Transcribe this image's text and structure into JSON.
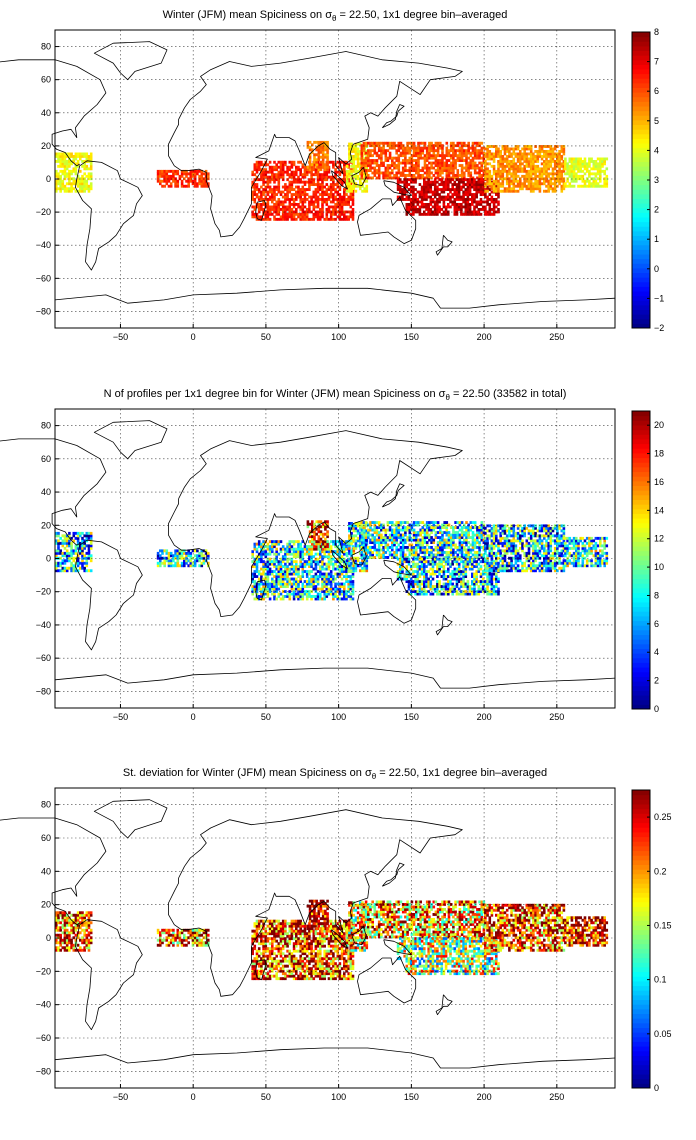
{
  "chart_data": [
    {
      "type": "heatmap",
      "title_parts": {
        "pre": "Winter (JFM) mean Spiciness on σ",
        "sub": "θ",
        "post": " = 22.50, 1x1 degree bin–averaged"
      },
      "xlim": [
        -95,
        290
      ],
      "ylim": [
        -90,
        90
      ],
      "x_ticks": [
        -50,
        0,
        50,
        100,
        150,
        200,
        250
      ],
      "y_ticks": [
        -80,
        -60,
        -40,
        -20,
        0,
        20,
        40,
        60,
        80
      ],
      "colorbar": {
        "min": -2,
        "max": 8,
        "ticks": [
          -2,
          -1,
          0,
          1,
          2,
          3,
          4,
          5,
          6,
          7,
          8
        ]
      },
      "grid": true,
      "regions": [
        {
          "x": [
            -95,
            -70
          ],
          "y": [
            -8,
            15
          ],
          "value": 4.2
        },
        {
          "x": [
            -25,
            10
          ],
          "y": [
            -5,
            5
          ],
          "value": 6.2
        },
        {
          "x": [
            40,
            110
          ],
          "y": [
            -25,
            10
          ],
          "value": 6.4
        },
        {
          "x": [
            78,
            92
          ],
          "y": [
            5,
            22
          ],
          "value": 5.5
        },
        {
          "x": [
            105,
            120
          ],
          "y": [
            -8,
            22
          ],
          "value": 4.2
        },
        {
          "x": [
            115,
            200
          ],
          "y": [
            0,
            22
          ],
          "value": 6.0
        },
        {
          "x": [
            140,
            210
          ],
          "y": [
            -22,
            0
          ],
          "value": 7.3
        },
        {
          "x": [
            200,
            255
          ],
          "y": [
            -8,
            20
          ],
          "value": 5.3
        },
        {
          "x": [
            255,
            285
          ],
          "y": [
            -5,
            12
          ],
          "value": 4.0
        }
      ]
    },
    {
      "type": "heatmap",
      "title_parts": {
        "pre": "N of profiles per 1x1 degree bin for Winter (JFM) mean Spiciness on σ",
        "sub": "θ",
        "post": " = 22.50 (33582 in total)"
      },
      "xlim": [
        -95,
        290
      ],
      "ylim": [
        -90,
        90
      ],
      "x_ticks": [
        -50,
        0,
        50,
        100,
        150,
        200,
        250
      ],
      "y_ticks": [
        -80,
        -60,
        -40,
        -20,
        0,
        20,
        40,
        60,
        80
      ],
      "colorbar": {
        "min": 0,
        "max": 21,
        "ticks": [
          0,
          2,
          4,
          6,
          8,
          10,
          12,
          14,
          16,
          18,
          20
        ]
      },
      "grid": true,
      "regions": [
        {
          "x": [
            -95,
            -70
          ],
          "y": [
            -8,
            15
          ],
          "value": 5
        },
        {
          "x": [
            -25,
            10
          ],
          "y": [
            -5,
            5
          ],
          "value": 5
        },
        {
          "x": [
            40,
            110
          ],
          "y": [
            -25,
            10
          ],
          "value": 6
        },
        {
          "x": [
            78,
            92
          ],
          "y": [
            5,
            22
          ],
          "value": 15
        },
        {
          "x": [
            105,
            120
          ],
          "y": [
            -8,
            22
          ],
          "value": 7
        },
        {
          "x": [
            115,
            200
          ],
          "y": [
            0,
            22
          ],
          "value": 6
        },
        {
          "x": [
            140,
            210
          ],
          "y": [
            -22,
            0
          ],
          "value": 5
        },
        {
          "x": [
            200,
            255
          ],
          "y": [
            -8,
            20
          ],
          "value": 5
        },
        {
          "x": [
            255,
            285
          ],
          "y": [
            -5,
            12
          ],
          "value": 6
        }
      ]
    },
    {
      "type": "heatmap",
      "title_parts": {
        "pre": "St. deviation for Winter (JFM) mean Spiciness on σ",
        "sub": "θ",
        "post": " = 22.50, 1x1 degree bin–averaged"
      },
      "xlim": [
        -95,
        290
      ],
      "ylim": [
        -90,
        90
      ],
      "x_ticks": [
        -50,
        0,
        50,
        100,
        150,
        200,
        250
      ],
      "y_ticks": [
        -80,
        -60,
        -40,
        -20,
        0,
        20,
        40,
        60,
        80
      ],
      "colorbar": {
        "min": 0,
        "max": 0.275,
        "ticks": [
          0,
          0.05,
          0.1,
          0.15,
          0.2,
          0.25
        ]
      },
      "grid": true,
      "regions": [
        {
          "x": [
            -95,
            -70
          ],
          "y": [
            -8,
            15
          ],
          "value": 0.2
        },
        {
          "x": [
            -25,
            10
          ],
          "y": [
            -5,
            5
          ],
          "value": 0.18
        },
        {
          "x": [
            40,
            110
          ],
          "y": [
            -25,
            10
          ],
          "value": 0.2
        },
        {
          "x": [
            78,
            92
          ],
          "y": [
            5,
            22
          ],
          "value": 0.24
        },
        {
          "x": [
            105,
            120
          ],
          "y": [
            -8,
            22
          ],
          "value": 0.15
        },
        {
          "x": [
            115,
            200
          ],
          "y": [
            0,
            22
          ],
          "value": 0.17
        },
        {
          "x": [
            140,
            210
          ],
          "y": [
            -22,
            0
          ],
          "value": 0.12
        },
        {
          "x": [
            200,
            255
          ],
          "y": [
            -8,
            20
          ],
          "value": 0.2
        },
        {
          "x": [
            255,
            285
          ],
          "y": [
            -5,
            12
          ],
          "value": 0.22
        }
      ]
    }
  ]
}
